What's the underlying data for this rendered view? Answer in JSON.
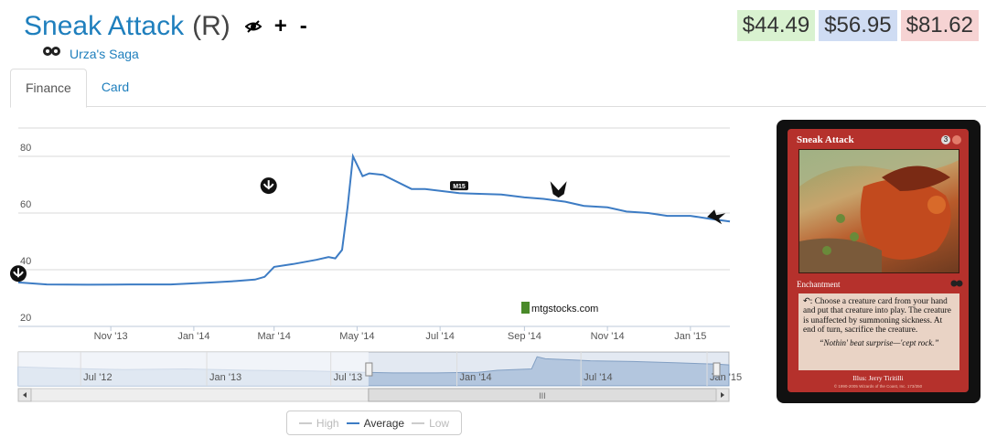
{
  "card": {
    "name": "Sneak Attack",
    "rarity": "(R)",
    "set_name": "Urza's Saga",
    "icons": [
      "hide-icon",
      "add-icon",
      "remove-icon"
    ],
    "plus_label": "+",
    "minus_label": "-"
  },
  "prices": {
    "low": "$44.49",
    "average": "$56.95",
    "high": "$81.62",
    "colors": {
      "low_bg": "#d9f2d0",
      "avg_bg": "#cfdcf3",
      "high_bg": "#f6d3d3"
    }
  },
  "tabs": [
    {
      "label": "Finance",
      "active": true
    },
    {
      "label": "Card",
      "active": false
    }
  ],
  "chart_data": {
    "type": "line",
    "title": "",
    "xlabel": "",
    "ylabel": "",
    "ylim": [
      20,
      90
    ],
    "x_ticks": [
      "Nov '13",
      "Jan '14",
      "Mar '14",
      "May '14",
      "Jul '14",
      "Sep '14",
      "Nov '14",
      "Jan '15"
    ],
    "y_ticks": [
      "20",
      "40",
      "60",
      "80"
    ],
    "grid": "horizontal",
    "watermark": "mtgstocks.com",
    "series": [
      {
        "name": "Average",
        "color": "#3d7cc4",
        "x": [
          "2013-08-25",
          "2013-09-15",
          "2013-10-15",
          "2013-11-15",
          "2013-12-15",
          "2014-01-15",
          "2014-02-01",
          "2014-02-15",
          "2014-02-22",
          "2014-03-01",
          "2014-03-15",
          "2014-04-01",
          "2014-04-10",
          "2014-04-15",
          "2014-04-20",
          "2014-04-24",
          "2014-04-28",
          "2014-05-05",
          "2014-05-10",
          "2014-05-20",
          "2014-06-10",
          "2014-06-20",
          "2014-07-15",
          "2014-08-15",
          "2014-09-01",
          "2014-09-15",
          "2014-10-01",
          "2014-10-15",
          "2014-11-01",
          "2014-11-15",
          "2014-12-01",
          "2014-12-15",
          "2015-01-01",
          "2015-01-15",
          "2015-01-30"
        ],
        "values": [
          35.5,
          34.8,
          34.7,
          34.8,
          34.8,
          35.5,
          36.0,
          36.5,
          37.5,
          41.0,
          42.0,
          43.5,
          44.5,
          44.0,
          47.0,
          62.0,
          80.0,
          73.0,
          74.0,
          73.5,
          68.5,
          68.5,
          67.0,
          66.5,
          65.5,
          65.0,
          64.0,
          62.5,
          62.0,
          60.5,
          60.0,
          59.0,
          59.0,
          58.0,
          57.0
        ]
      }
    ],
    "event_markers": [
      {
        "date": "2013-08-25",
        "icon": "set-symbol-icon"
      },
      {
        "date": "2014-02-25",
        "icon": "set-symbol-icon"
      },
      {
        "date": "2014-05-08",
        "icon": "set-symbol-icon"
      },
      {
        "date": "2014-07-15",
        "icon": "m15-set-icon"
      },
      {
        "date": "2014-09-26",
        "icon": "khans-set-icon"
      },
      {
        "date": "2015-01-20",
        "icon": "fate-reforged-set-icon"
      }
    ],
    "navigator": {
      "x_ticks": [
        "Jul '12",
        "Jan '13",
        "Jul '13",
        "Jan '14",
        "Jul '14",
        "Jan '15"
      ],
      "selected_range": [
        "2013-08-25",
        "2015-01-30"
      ],
      "scroll_label": "III"
    },
    "legend": [
      "High",
      "Average",
      "Low"
    ],
    "legend_active": "Average"
  },
  "card_image": {
    "title": "Sneak Attack",
    "mana_cost": [
      "3",
      "R"
    ],
    "type_line": "Enchantment",
    "rules_text": "↶: Choose a creature card from your hand and put that creature into play. The creature is unaffected by summoning sickness. At end of turn, sacrifice the creature.",
    "flavor_text": "“Nothin' beat surprise—'cept rock.”",
    "illustrator": "Illus: Jerry Tiritilli",
    "legal": "© 1990-2005 Wizards of the Coast, Inc. 173/350"
  }
}
